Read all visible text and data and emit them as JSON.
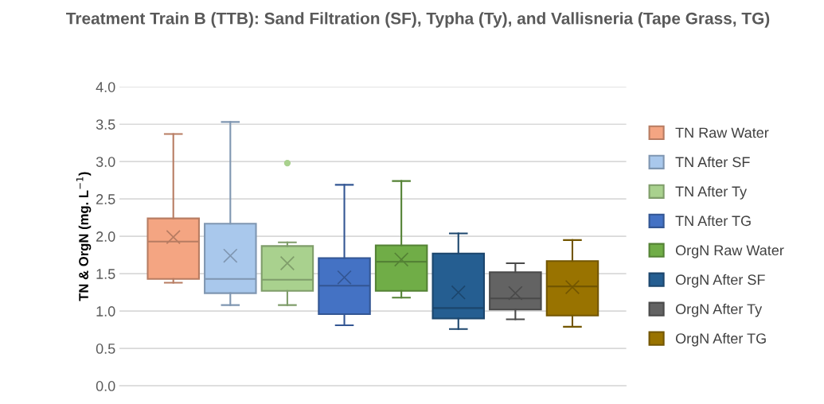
{
  "chart_data": {
    "type": "box",
    "title": "Treatment Train B (TTB): Sand Filtration (SF), Typha (Ty), and Vallisneria (Tape Grass, TG)",
    "ylabel": "TN & OrgN (mg. L$^{−1}$)",
    "categories": [
      null
    ],
    "series": [
      {
        "name": "TN Raw Water",
        "color": "#f4a582",
        "boxes": [
          {
            "low": 1.38,
            "q1": 1.43,
            "median": 1.93,
            "q3": 2.24,
            "high": 3.37,
            "mean": 1.99
          }
        ]
      },
      {
        "name": "TN After SF",
        "color": "#a9c8ec",
        "boxes": [
          {
            "low": 1.08,
            "q1": 1.24,
            "median": 1.43,
            "q3": 2.17,
            "high": 3.53,
            "mean": 1.74
          }
        ]
      },
      {
        "name": "TN After Ty",
        "color": "#a9d18e",
        "boxes": [
          {
            "low": 1.08,
            "q1": 1.27,
            "median": 1.42,
            "q3": 1.87,
            "high": 1.92,
            "mean": 1.64,
            "outliers": [
              2.98
            ]
          }
        ]
      },
      {
        "name": "TN After TG",
        "color": "#4472c4",
        "boxes": [
          {
            "low": 0.81,
            "q1": 0.96,
            "median": 1.34,
            "q3": 1.71,
            "high": 2.69,
            "mean": 1.45
          }
        ]
      },
      {
        "name": "OrgN Raw Water",
        "color": "#70ad47",
        "boxes": [
          {
            "low": 1.18,
            "q1": 1.27,
            "median": 1.66,
            "q3": 1.88,
            "high": 2.74,
            "mean": 1.69
          }
        ]
      },
      {
        "name": "OrgN After SF",
        "color": "#255e91",
        "boxes": [
          {
            "low": 0.76,
            "q1": 0.9,
            "median": 1.04,
            "q3": 1.77,
            "high": 2.04,
            "mean": 1.25
          }
        ]
      },
      {
        "name": "OrgN After Ty",
        "color": "#636363",
        "boxes": [
          {
            "low": 0.89,
            "q1": 1.02,
            "median": 1.17,
            "q3": 1.52,
            "high": 1.64,
            "mean": 1.24
          }
        ]
      },
      {
        "name": "OrgN After TG",
        "color": "#997300",
        "boxes": [
          {
            "low": 0.79,
            "q1": 0.94,
            "median": 1.33,
            "q3": 1.67,
            "high": 1.95,
            "mean": 1.32
          }
        ]
      }
    ],
    "ylim": [
      0,
      4
    ],
    "yticks": [
      {
        "value": 0,
        "label": "0.0"
      },
      {
        "value": 0.5,
        "label": "0.5"
      },
      {
        "value": 1,
        "label": "1.0"
      },
      {
        "value": 1.5,
        "label": "1.5"
      },
      {
        "value": 2,
        "label": "2.0"
      },
      {
        "value": 2.5,
        "label": "2.5"
      },
      {
        "value": 3,
        "label": "3.0"
      },
      {
        "value": 3.5,
        "label": "3.5"
      },
      {
        "value": 4,
        "label": "4.0"
      }
    ],
    "grid": "y",
    "legend": "right",
    "tick_labels": "y"
  }
}
